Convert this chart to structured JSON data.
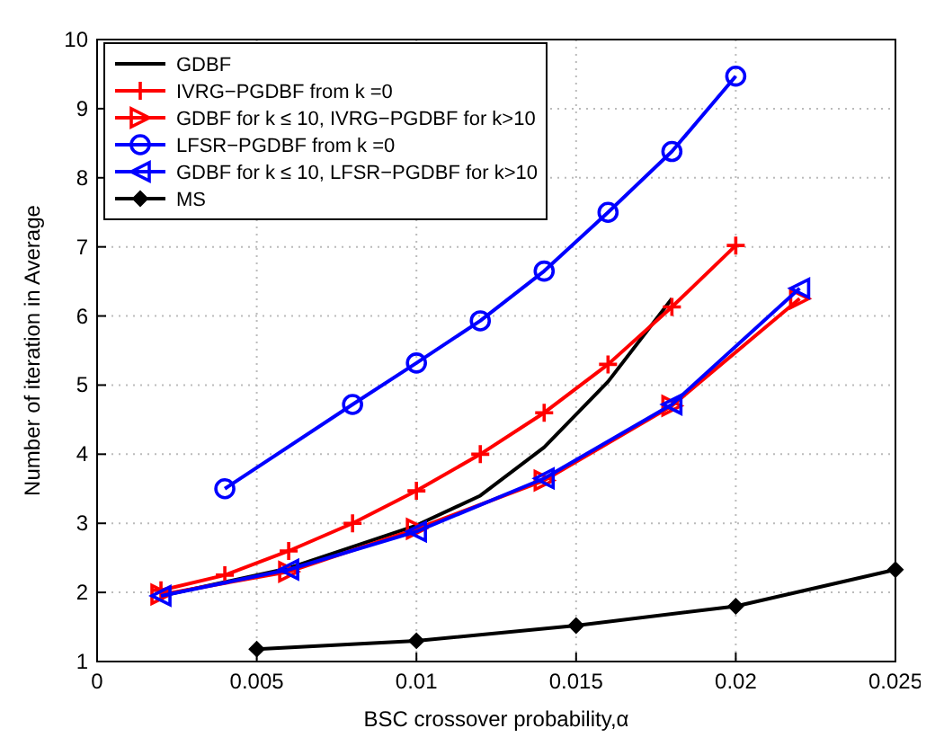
{
  "chart_data": {
    "type": "line",
    "xlabel": "BSC crossover probability,α",
    "ylabel": "Number of iteration in Average",
    "xlim": [
      0,
      0.025
    ],
    "xticks": [
      0,
      0.005,
      0.01,
      0.015,
      0.02,
      0.025
    ],
    "ylim": [
      1,
      10
    ],
    "yticks": [
      1,
      2,
      3,
      4,
      5,
      6,
      7,
      8,
      9,
      10
    ],
    "grid": true,
    "legend": "top left",
    "series": [
      {
        "name": "GDBF",
        "color": "#000000",
        "marker": "none",
        "x": [
          0.002,
          0.006,
          0.01,
          0.012,
          0.014,
          0.016,
          0.018
        ],
        "values": [
          1.95,
          2.35,
          2.97,
          3.4,
          4.1,
          5.05,
          6.25
        ]
      },
      {
        "name": "IVRG−PGDBF from k =0",
        "color": "#ff0000",
        "marker": "cross",
        "x": [
          0.002,
          0.004,
          0.006,
          0.008,
          0.01,
          0.012,
          0.014,
          0.016,
          0.018,
          0.02
        ],
        "values": [
          2.03,
          2.25,
          2.6,
          3.0,
          3.47,
          4.0,
          4.6,
          5.3,
          6.13,
          7.02
        ]
      },
      {
        "name": "GDBF for k ≤ 10, IVRG−PGDBF for k>10",
        "color": "#ff0000",
        "marker": "triangle",
        "x": [
          0.002,
          0.006,
          0.01,
          0.014,
          0.018,
          0.022
        ],
        "values": [
          1.97,
          2.3,
          2.92,
          3.62,
          4.7,
          6.25
        ]
      },
      {
        "name": "LFSR−PGDBF from k =0",
        "color": "#0000ff",
        "marker": "circle",
        "x": [
          0.004,
          0.008,
          0.01,
          0.012,
          0.014,
          0.016,
          0.018,
          0.02
        ],
        "values": [
          3.5,
          4.72,
          5.32,
          5.93,
          6.65,
          7.5,
          8.38,
          9.47
        ]
      },
      {
        "name": "GDBF for k ≤ 10, LFSR−PGDBF for k>10",
        "color": "#0000ff",
        "marker": "triangle",
        "x": [
          0.002,
          0.006,
          0.01,
          0.014,
          0.018,
          0.022
        ],
        "values": [
          1.95,
          2.33,
          2.88,
          3.65,
          4.72,
          6.4
        ]
      },
      {
        "name": "MS",
        "color": "#000000",
        "marker": "diamond",
        "x": [
          0.005,
          0.01,
          0.015,
          0.02,
          0.025
        ],
        "values": [
          1.18,
          1.3,
          1.52,
          1.8,
          2.33
        ]
      }
    ]
  }
}
